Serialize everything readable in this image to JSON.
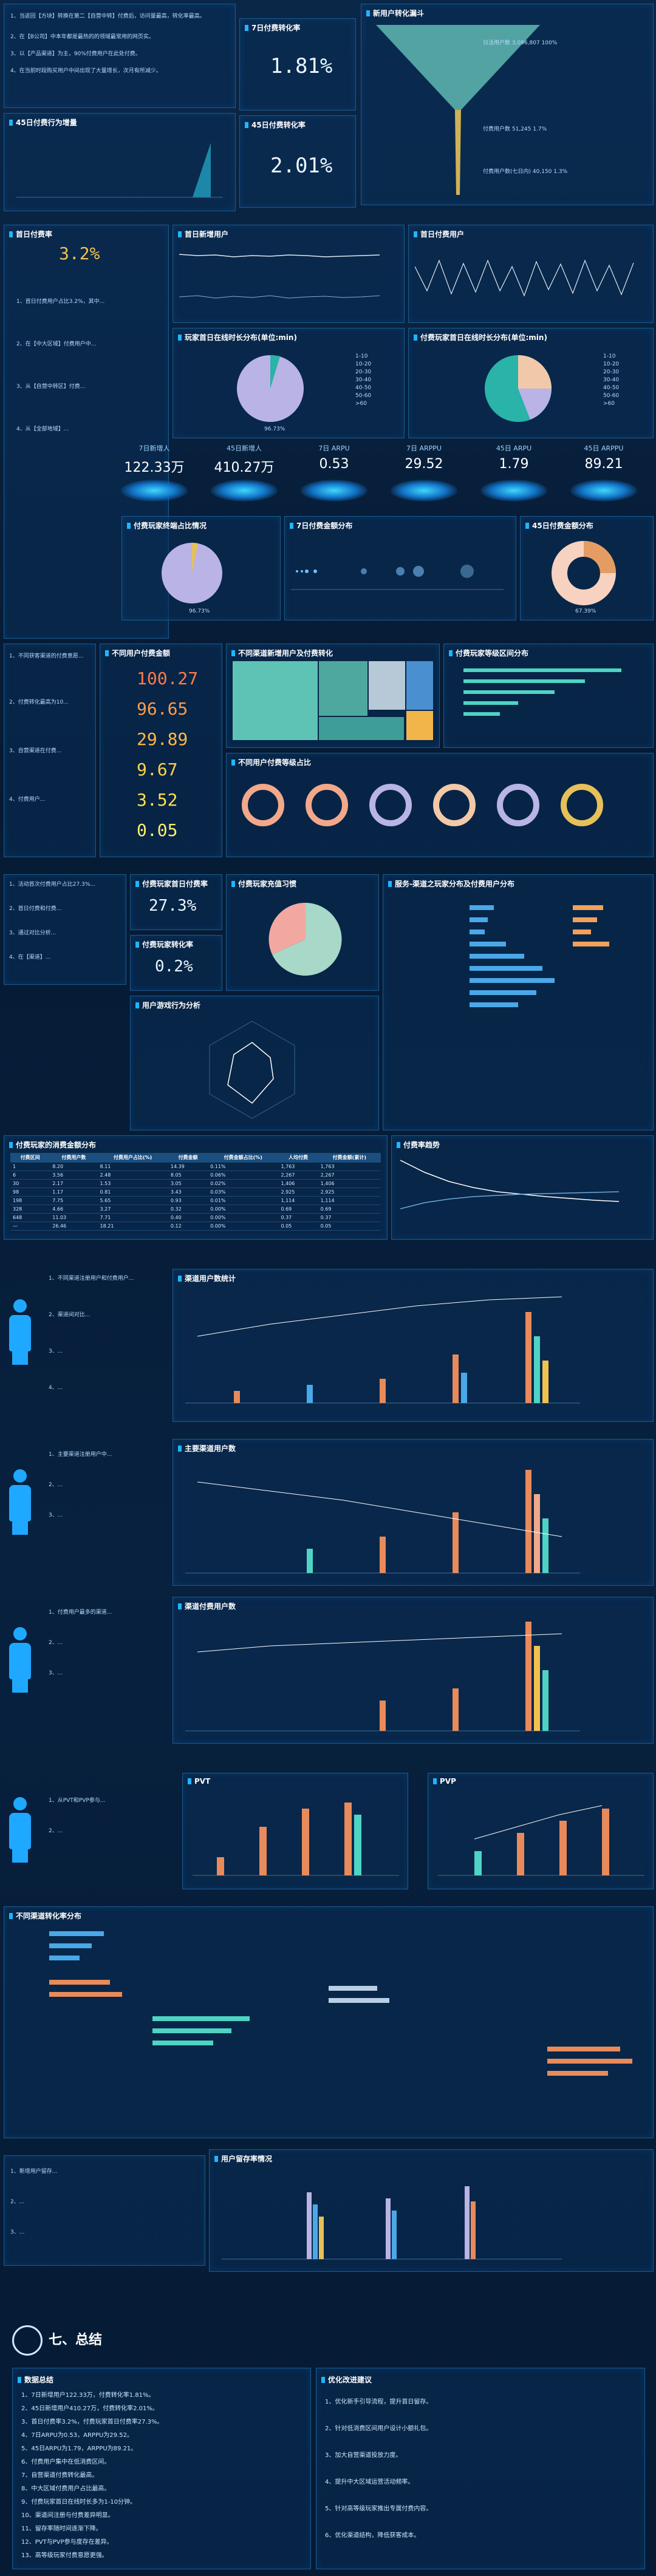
{
  "top": {
    "notes": [
      "1、当返回【方块】转换在第二【自营中转】付费后，访问量最高，转化率最高。",
      "2、在【B公司】中本年都是最热的的领域最常用的网页实。",
      "3、以【产品渠道】为主，90%付费用户在此处付费。",
      "4、在当前时段购买用户中间出现了大量增长，次月有所减少。"
    ],
    "m1": {
      "title": "7日付费转化率",
      "value": "1.81%"
    },
    "m2": {
      "title": "45日付费转化率",
      "value": "2.01%"
    },
    "funnel_title": "新用户转化漏斗",
    "funnel_labels": [
      {
        "name": "日活用户数",
        "value": "3,096,807",
        "pct": "100%"
      },
      {
        "name": "付费用户数",
        "value": "51,245",
        "pct": "1.7%"
      },
      {
        "name": "付费用户数(七日内)",
        "value": "40,150",
        "pct": "1.3%"
      },
      {
        "name": "付费用户数(45日内)",
        "value": "",
        "pct": ""
      }
    ],
    "growth_title": "45日付费行为增量"
  },
  "s2": {
    "title": "首日付费率",
    "value": "3.2%",
    "notes": [
      "1、首日付费用户占比3.2%，其中...",
      "2、在【中大区域】付费用户中...",
      "3、从【自营中转区】付费...",
      "4、从【全部地域】..."
    ],
    "dau_title": "首日新增用户",
    "pay_title": "首日付费用户",
    "pie1_title": "玩家首日在线时长分布(单位:min)",
    "pie1_legend": [
      "1-10",
      "10-20",
      "20-30",
      "30-40",
      "40-50",
      "50-60",
      ">60"
    ],
    "pie1_val": "96.73%",
    "pie2_title": "付费玩家首日在线时长分布(单位:min)",
    "pie2_legend": [
      "1-10",
      "10-20",
      "20-30",
      "30-40",
      "40-50",
      "50-60",
      ">60"
    ]
  },
  "kpis": [
    {
      "label": "7日新增人",
      "value": "122.33万"
    },
    {
      "label": "45日新增人",
      "value": "410.27万"
    },
    {
      "label": "7日 ARPU",
      "value": "0.53"
    },
    {
      "label": "7日 ARPPU",
      "value": "29.52"
    },
    {
      "label": "45日 ARPU",
      "value": "1.79"
    },
    {
      "label": "45日 ARPPU",
      "value": "89.21"
    }
  ],
  "s3": {
    "notes": [
      "1、7日新增用户122万...",
      "2、在【中大区】付费用户中...",
      "3、在【自营渠道】中...",
      "4、在【全区域】中..."
    ],
    "pie_title": "付费玩家终端占比情况",
    "pie_val": "96.73%",
    "sc_title": "7日付费金额分布",
    "ring_title": "45日付费金额分布",
    "ring_val": "67.39%"
  },
  "s4": {
    "notes": [
      "1、不同获客渠道的付费意愿...",
      "2、付费转化最高为10...",
      "3、自营渠道在付费...",
      "4、付费用户..."
    ],
    "pay_title": "不同用户付费金额",
    "tree_title": "不同渠道新增用户及付费转化",
    "bar_title": "付费玩家等级区间分布",
    "donut_title": "不同用户付费等级占比",
    "nums": [
      "100.27",
      "96.65",
      "29.89",
      "9.67",
      "3.52",
      "0.05"
    ]
  },
  "s5": {
    "notes": [
      "1、活动首次付费用户占比27.3%...",
      "2、首日付费和付费...",
      "3、通过对比分析...",
      "4、在【渠道】..."
    ],
    "m1": {
      "title": "付费玩家首日付费率",
      "value": "27.3%"
    },
    "m2": {
      "title": "付费玩家转化率",
      "value": "0.2%"
    },
    "pie_title": "付费玩家充值习惯",
    "radar_title": "用户游戏行为分析",
    "table_title": "服务-渠道之玩家分布及付费用户分布"
  },
  "s6": {
    "t_title": "付费玩家的消费金额分布",
    "t_head": [
      "付费区间",
      "付费用户数",
      "付费用户占比(%)",
      "付费金额",
      "付费金额占比(%)",
      "人均付费",
      "付费金额(累计)"
    ],
    "t_rows": [
      [
        "1",
        "8.20",
        "8.11",
        "14.39",
        "0.11%",
        "1,763",
        "1,763"
      ],
      [
        "6",
        "3.56",
        "2.48",
        "8.05",
        "0.06%",
        "2,267",
        "2,267"
      ],
      [
        "30",
        "2.17",
        "1.53",
        "3.05",
        "0.02%",
        "1,406",
        "1,406"
      ],
      [
        "98",
        "1.17",
        "0.81",
        "3.43",
        "0.03%",
        "2,925",
        "2,925"
      ],
      [
        "198",
        "7.75",
        "5.65",
        "0.93",
        "0.01%",
        "1,114",
        "1,114"
      ],
      [
        "328",
        "4.66",
        "3.27",
        "0.32",
        "0.00%",
        "0.69",
        "0.69"
      ],
      [
        "648",
        "11.03",
        "7.71",
        "0.40",
        "0.00%",
        "0.37",
        "0.37"
      ],
      [
        "—",
        "26.46",
        "18.21",
        "0.12",
        "0.00%",
        "0.05",
        "0.05"
      ]
    ],
    "line_title": "付费率趋势"
  },
  "s7": {
    "title": "渠道用户数统计",
    "notes": [
      "1、不同渠道注册用户和付费用户...",
      "2、渠道间对比...",
      "3、...",
      "4、..."
    ]
  },
  "s8": {
    "title": "主要渠道用户数",
    "notes": [
      "1、主要渠道注册用户中...",
      "2、...",
      "3、..."
    ]
  },
  "s9": {
    "title": "渠道付费用户数",
    "notes": [
      "1、付费用户最多的渠道...",
      "2、...",
      "3、..."
    ]
  },
  "s10": {
    "pvt": "PVT",
    "pvp": "PVP",
    "notes": [
      "1、从PVT和PVP参与...",
      "2、..."
    ]
  },
  "s11": {
    "title": "不同渠道转化率分布"
  },
  "s12": {
    "title": "用户留存率情况",
    "notes": [
      "1、新增用户留存...",
      "2、...",
      "3、..."
    ]
  },
  "s13": {
    "sec": "七、总结",
    "left_title": "数据总结",
    "right_title": "优化改进建议",
    "left": [
      "1、7日新增用户122.33万，付费转化率1.81%。",
      "2、45日新增用户410.27万，付费转化率2.01%。",
      "3、首日付费率3.2%，付费玩家首日付费率27.3%。",
      "4、7日ARPU为0.53，ARPPU为29.52。",
      "5、45日ARPU为1.79，ARPPU为89.21。",
      "6、付费用户集中在低消费区间。",
      "7、自营渠道付费转化最高。",
      "8、中大区域付费用户占比最高。",
      "9、付费玩家首日在线时长多为1-10分钟。",
      "10、渠道间注册与付费差异明显。",
      "11、留存率随时间逐渐下降。",
      "12、PVT与PVP参与度存在差异。",
      "13、高等级玩家付费意愿更强。",
      "14、建议持续优化新手引导。"
    ],
    "right": [
      "1、优化新手引导流程，提升首日留存。",
      "2、针对低消费区间用户设计小额礼包。",
      "3、加大自营渠道投放力度。",
      "4、提升中大区域运营活动频率。",
      "5、针对高等级玩家推出专属付费内容。",
      "6、优化渠道结构，降低获客成本。"
    ]
  }
}
